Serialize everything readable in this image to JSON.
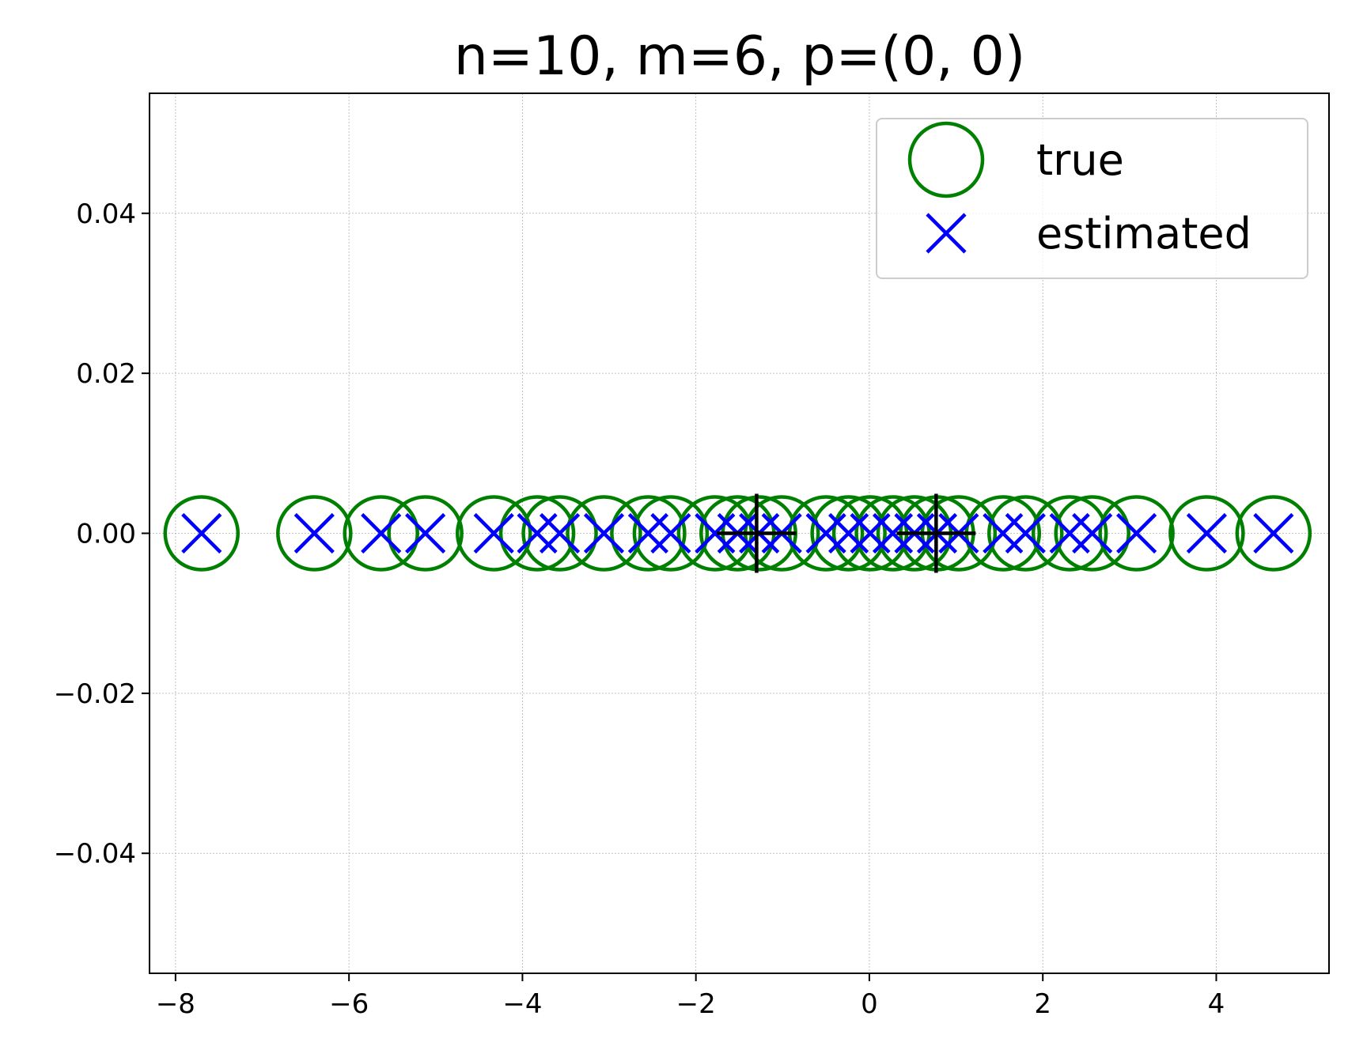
{
  "chart_data": {
    "type": "scatter",
    "title": "n=10, m=6, p=(0, 0)",
    "xlabel": "",
    "ylabel": "",
    "xlim": [
      -8.3,
      5.3
    ],
    "ylim": [
      -0.055,
      0.055
    ],
    "xticks": [
      -8,
      -6,
      -4,
      -2,
      0,
      2,
      4
    ],
    "xtick_labels": [
      "−8",
      "−6",
      "−4",
      "−2",
      "0",
      "2",
      "4"
    ],
    "yticks": [
      -0.04,
      -0.02,
      0.0,
      0.02,
      0.04
    ],
    "ytick_labels": [
      "−0.04",
      "−0.02",
      "0.00",
      "0.02",
      "0.04"
    ],
    "grid": true,
    "legend_position": "top-right",
    "series": [
      {
        "name": "true",
        "marker": "circle-open",
        "color": "#008000",
        "x": [
          -7.7,
          -6.4,
          -5.63,
          -5.12,
          -4.33,
          -3.83,
          -3.57,
          -3.06,
          -2.55,
          -2.29,
          -1.78,
          -1.52,
          -1.27,
          -1.01,
          -0.5,
          -0.24,
          0.01,
          0.27,
          0.52,
          0.78,
          1.03,
          1.54,
          1.8,
          2.31,
          2.57,
          3.08,
          3.89,
          4.66
        ],
        "y": [
          0,
          0,
          0,
          0,
          0,
          0,
          0,
          0,
          0,
          0,
          0,
          0,
          0,
          0,
          0,
          0,
          0,
          0,
          0,
          0,
          0,
          0,
          0,
          0,
          0,
          0,
          0,
          0
        ]
      },
      {
        "name": "estimated",
        "marker": "x",
        "color": "#0000ff",
        "x": [
          -7.7,
          -6.4,
          -5.63,
          -5.12,
          -4.33,
          -3.83,
          -3.57,
          -3.06,
          -2.55,
          -2.29,
          -1.78,
          -1.52,
          -1.27,
          -1.01,
          -0.5,
          -0.24,
          0.01,
          0.27,
          0.52,
          0.78,
          1.03,
          1.54,
          1.8,
          2.31,
          2.57,
          3.08,
          3.89,
          4.66
        ],
        "y": [
          0,
          0,
          0,
          0,
          0,
          0,
          0,
          0,
          0,
          0,
          0,
          0,
          0,
          0,
          0,
          0,
          0,
          0,
          0,
          0,
          0,
          0,
          0,
          0,
          0,
          0,
          0,
          0
        ]
      },
      {
        "marker": "plus",
        "color": "#000000",
        "x": [
          -1.3,
          0.77
        ],
        "y": [
          0,
          0
        ]
      }
    ]
  }
}
